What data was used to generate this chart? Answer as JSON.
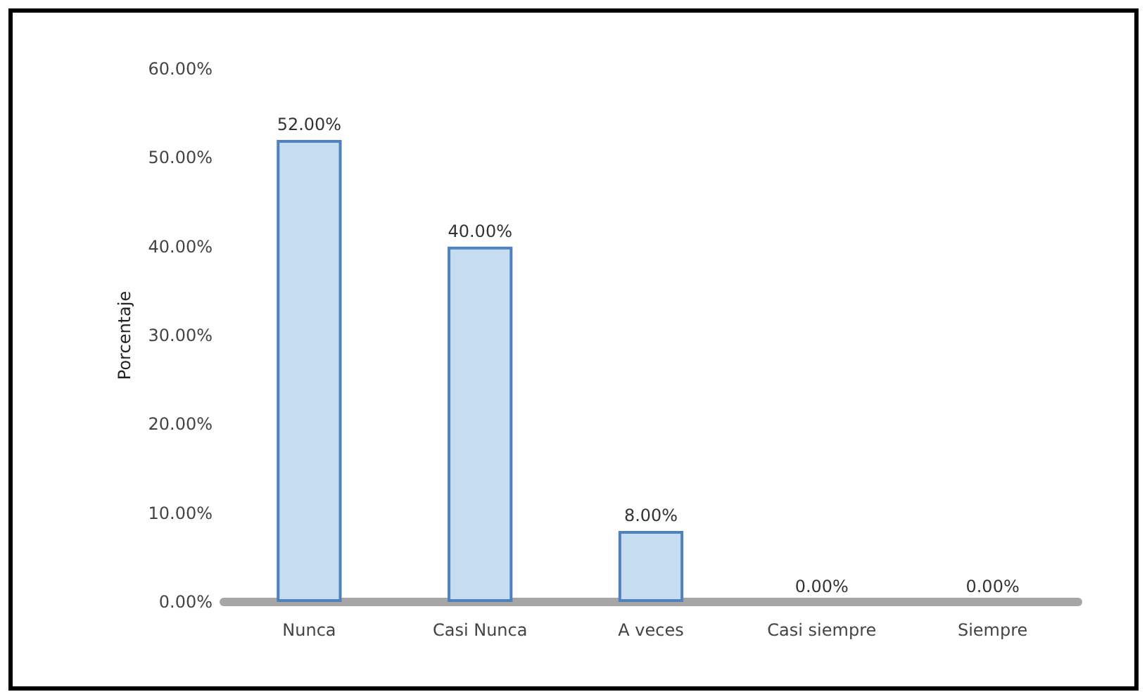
{
  "chart_data": {
    "type": "bar",
    "categories": [
      "Nunca",
      "Casi Nunca",
      "A veces",
      "Casi siempre",
      "Siempre"
    ],
    "values": [
      52,
      40,
      8,
      0,
      0
    ],
    "value_labels": [
      "52.00%",
      "40.00%",
      "8.00%",
      "0.00%",
      "0.00%"
    ],
    "color": "#c6dcf1",
    "ylabel": "Porcentaje",
    "ylim": [
      0,
      60
    ],
    "yticks": [
      {
        "value": 0,
        "label": "0.00%"
      },
      {
        "value": 10,
        "label": "10.00%"
      },
      {
        "value": 20,
        "label": "20.00%"
      },
      {
        "value": 30,
        "label": "30.00%"
      },
      {
        "value": 40,
        "label": "40.00%"
      },
      {
        "value": 50,
        "label": "50.00%"
      },
      {
        "value": 60,
        "label": "60.00%"
      }
    ],
    "grid": false
  }
}
